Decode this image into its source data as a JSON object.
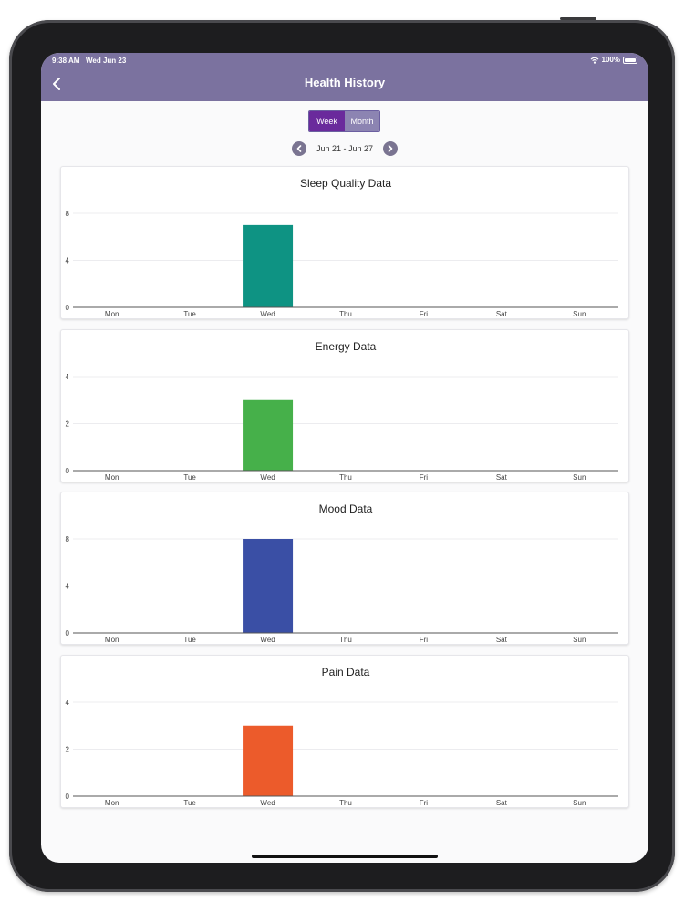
{
  "status_bar": {
    "time": "9:38 AM",
    "date": "Wed Jun 23",
    "battery": "100%"
  },
  "nav": {
    "title": "Health History"
  },
  "segmented": {
    "week_label": "Week",
    "month_label": "Month",
    "selected": "Week"
  },
  "date_range": {
    "label": "Jun 21 - Jun 27"
  },
  "colors": {
    "header": "#7b729f",
    "week_active": "#6a2a9c",
    "month_inactive": "#8c84b2"
  },
  "chart_data": [
    {
      "type": "bar",
      "title": "Sleep Quality Data",
      "categories": [
        "Mon",
        "Tue",
        "Wed",
        "Thu",
        "Fri",
        "Sat",
        "Sun"
      ],
      "values": [
        0,
        0,
        7,
        0,
        0,
        0,
        0
      ],
      "ylim": [
        0,
        8
      ],
      "yticks": [
        "0",
        "4",
        "8"
      ],
      "color": "#0e9383",
      "grid": true
    },
    {
      "type": "bar",
      "title": "Energy Data",
      "categories": [
        "Mon",
        "Tue",
        "Wed",
        "Thu",
        "Fri",
        "Sat",
        "Sun"
      ],
      "values": [
        0,
        0,
        3,
        0,
        0,
        0,
        0
      ],
      "ylim": [
        0,
        4
      ],
      "yticks": [
        "0",
        "2",
        "4"
      ],
      "color": "#46b04a",
      "grid": true
    },
    {
      "type": "bar",
      "title": "Mood Data",
      "categories": [
        "Mon",
        "Tue",
        "Wed",
        "Thu",
        "Fri",
        "Sat",
        "Sun"
      ],
      "values": [
        0,
        0,
        8,
        0,
        0,
        0,
        0
      ],
      "ylim": [
        0,
        8
      ],
      "yticks": [
        "0",
        "4",
        "8"
      ],
      "color": "#3a4fa5",
      "grid": true
    },
    {
      "type": "bar",
      "title": "Pain Data",
      "categories": [
        "Mon",
        "Tue",
        "Wed",
        "Thu",
        "Fri",
        "Sat",
        "Sun"
      ],
      "values": [
        0,
        0,
        3,
        0,
        0,
        0,
        0
      ],
      "ylim": [
        0,
        4
      ],
      "yticks": [
        "0",
        "2",
        "4"
      ],
      "color": "#ec5b2b",
      "grid": true
    }
  ]
}
